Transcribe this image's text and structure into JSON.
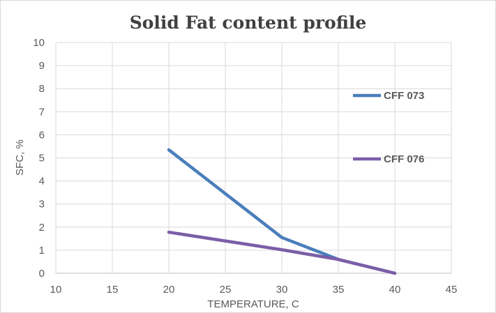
{
  "chart_data": {
    "type": "line",
    "title": "Solid Fat content profile",
    "xlabel": "TEMPERATURE, C",
    "ylabel": "SFC, %",
    "xlim": [
      10,
      45
    ],
    "ylim": [
      0,
      10
    ],
    "xticks": [
      10,
      15,
      20,
      25,
      30,
      35,
      40,
      45
    ],
    "yticks": [
      0,
      1,
      2,
      3,
      4,
      5,
      6,
      7,
      8,
      9,
      10
    ],
    "grid": true,
    "legend_position": "right",
    "series": [
      {
        "name": "CFF 073",
        "color": "#4a7ebb",
        "x": [
          20,
          30,
          35,
          40
        ],
        "y": [
          5.35,
          1.55,
          0.6,
          0
        ]
      },
      {
        "name": "CFF 076",
        "color": "#7b5ea7",
        "x": [
          20,
          30,
          35,
          40
        ],
        "y": [
          1.78,
          1.02,
          0.6,
          0
        ]
      }
    ]
  }
}
